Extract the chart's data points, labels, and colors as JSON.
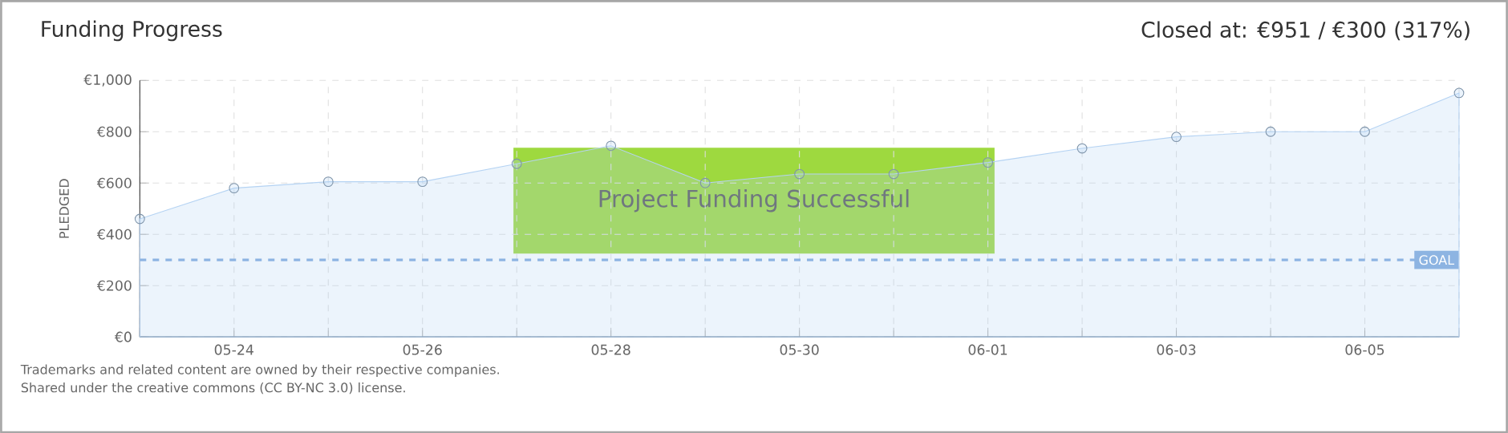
{
  "chart_data": {
    "type": "area",
    "title": "Funding Progress",
    "subtitle": "Closed at: €951 / €300 (317%)",
    "ylabel": "PLEDGED",
    "categories": [
      null,
      "05-24",
      null,
      "05-26",
      null,
      "05-28",
      null,
      "05-30",
      null,
      "06-01",
      null,
      "06-03",
      null,
      "06-05",
      null
    ],
    "series": [
      {
        "color": "#b5d3f3",
        "values": [
          460,
          580,
          605,
          605,
          675,
          745,
          600,
          635,
          635,
          680,
          735,
          780,
          800,
          800,
          951
        ]
      }
    ],
    "ylim": [
      0,
      1000
    ],
    "yticks": [
      {
        "value": 0,
        "label": "€0"
      },
      {
        "value": 200,
        "label": "€200"
      },
      {
        "value": 400,
        "label": "€400"
      },
      {
        "value": 600,
        "label": "€600"
      },
      {
        "value": 800,
        "label": "€800"
      },
      {
        "value": 1000,
        "label": "€1,000"
      }
    ],
    "ref_lines": [
      {
        "axis": "y",
        "value": 300,
        "label": "GOAL",
        "color": "#8db4e2",
        "line_style": "dashed"
      }
    ],
    "annotations": [
      "Project Funding Successful",
      "Trademarks and related content are owned by their respective companies.",
      "Shared under the creative commons (CC BY-NC 3.0) license."
    ],
    "grid": true,
    "marker": "circle",
    "line_style": "solid"
  }
}
